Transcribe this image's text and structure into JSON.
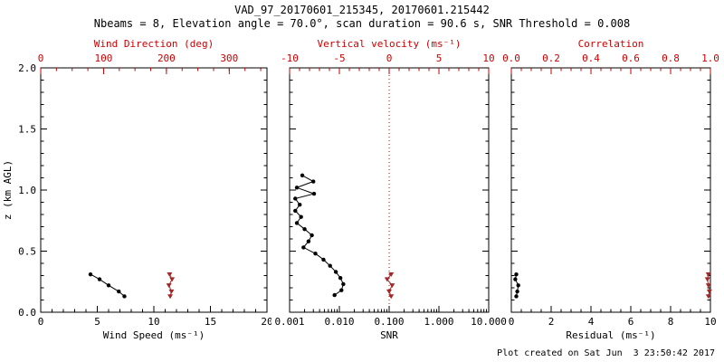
{
  "title": "VAD_97_20170601_215345, 20170601.215442",
  "subtitle": "Nbeams = 8, Elevation angle = 70.0°, scan duration = 90.6 s, SNR Threshold = 0.008",
  "footer": "Plot created on Sat Jun  3 23:50:42 2017",
  "colors": {
    "axis_black": "#000000",
    "accent_red": "#cc0000",
    "marker_red": "#a02828",
    "background": "#ffffff"
  },
  "y_axis": {
    "label": "z (km AGL)",
    "min": 0,
    "max": 2,
    "ticks": [
      0,
      0.5,
      1.0,
      1.5,
      2.0
    ],
    "tick_labels": [
      "0.0",
      "0.5",
      "1.0",
      "1.5",
      "2.0"
    ],
    "minor_step": 0.1
  },
  "chart_data": [
    {
      "type": "scatter",
      "name": "wind-panel",
      "bottom_axis": {
        "label": "Wind Speed (ms⁻¹)",
        "scale": "linear",
        "min": 0,
        "max": 20,
        "ticks": [
          0,
          5,
          10,
          15,
          20
        ],
        "tick_labels": [
          "0",
          "5",
          "10",
          "15",
          "20"
        ],
        "minor_step": 1
      },
      "top_axis": {
        "label": "Wind Direction (deg)",
        "scale": "linear",
        "min": 0,
        "max": 360,
        "ticks": [
          0,
          100,
          200,
          300
        ],
        "tick_labels": [
          "0",
          "100",
          "200",
          "300"
        ],
        "minor_step": 25
      },
      "series": [
        {
          "name": "wind-speed",
          "axis": "bottom",
          "color": "black",
          "marker": "circle",
          "points": [
            [
              4.4,
              0.31
            ],
            [
              5.2,
              0.27
            ],
            [
              6.0,
              0.22
            ],
            [
              6.9,
              0.17
            ],
            [
              7.4,
              0.13
            ]
          ]
        },
        {
          "name": "wind-direction",
          "axis": "top",
          "color": "red",
          "marker": "triangle",
          "points": [
            [
              205,
              0.31
            ],
            [
              209,
              0.27
            ],
            [
              204,
              0.22
            ],
            [
              208,
              0.17
            ],
            [
              206,
              0.13
            ]
          ]
        }
      ]
    },
    {
      "type": "scatter",
      "name": "snr-panel",
      "bottom_axis": {
        "label": "SNR",
        "scale": "log",
        "min": 0.001,
        "max": 10,
        "ticks": [
          0.001,
          0.01,
          0.1,
          1,
          10
        ],
        "tick_labels": [
          "0.001",
          "0.010",
          "0.100",
          "1.000",
          "10.000"
        ]
      },
      "top_axis": {
        "label": "Vertical velocity (ms⁻¹)",
        "scale": "linear",
        "min": -10,
        "max": 10,
        "ticks": [
          -10,
          -5,
          0,
          5,
          10
        ],
        "tick_labels": [
          "-10",
          "-5",
          "0",
          "5",
          "10"
        ],
        "minor_step": 1
      },
      "refline": {
        "axis": "top",
        "value": 0,
        "color": "red",
        "dash": "1,3"
      },
      "series": [
        {
          "name": "snr-profile",
          "axis": "bottom",
          "color": "black",
          "marker": "circle",
          "points": [
            [
              0.0018,
              1.12
            ],
            [
              0.003,
              1.07
            ],
            [
              0.0014,
              1.02
            ],
            [
              0.0031,
              0.97
            ],
            [
              0.0013,
              0.93
            ],
            [
              0.0016,
              0.88
            ],
            [
              0.0013,
              0.83
            ],
            [
              0.0017,
              0.78
            ],
            [
              0.0014,
              0.73
            ],
            [
              0.002,
              0.68
            ],
            [
              0.0028,
              0.63
            ],
            [
              0.0024,
              0.58
            ],
            [
              0.0019,
              0.53
            ],
            [
              0.0033,
              0.48
            ],
            [
              0.0048,
              0.43
            ],
            [
              0.0065,
              0.38
            ],
            [
              0.0085,
              0.33
            ],
            [
              0.0105,
              0.28
            ],
            [
              0.012,
              0.23
            ],
            [
              0.011,
              0.18
            ],
            [
              0.008,
              0.14
            ]
          ]
        },
        {
          "name": "vertical-velocity",
          "axis": "top",
          "color": "red",
          "marker": "triangle",
          "points": [
            [
              0.2,
              0.31
            ],
            [
              -0.2,
              0.27
            ],
            [
              0.3,
              0.22
            ],
            [
              0.0,
              0.17
            ],
            [
              0.2,
              0.13
            ]
          ]
        }
      ]
    },
    {
      "type": "scatter",
      "name": "residual-panel",
      "bottom_axis": {
        "label": "Residual (ms⁻¹)",
        "scale": "linear",
        "min": 0,
        "max": 10,
        "ticks": [
          0,
          2,
          4,
          6,
          8,
          10
        ],
        "tick_labels": [
          "0",
          "2",
          "4",
          "6",
          "8",
          "10"
        ],
        "minor_step": 0.5
      },
      "top_axis": {
        "label": "Correlation",
        "scale": "linear",
        "min": 0,
        "max": 1,
        "ticks": [
          0,
          0.2,
          0.4,
          0.6,
          0.8,
          1.0
        ],
        "tick_labels": [
          "0.0",
          "0.2",
          "0.4",
          "0.6",
          "0.8",
          "1.0"
        ],
        "minor_step": 0.05
      },
      "series": [
        {
          "name": "residual-profile",
          "axis": "bottom",
          "color": "black",
          "marker": "circle",
          "points": [
            [
              0.25,
              0.31
            ],
            [
              0.2,
              0.27
            ],
            [
              0.35,
              0.22
            ],
            [
              0.3,
              0.17
            ],
            [
              0.25,
              0.13
            ]
          ]
        },
        {
          "name": "correlation",
          "axis": "top",
          "color": "red",
          "marker": "triangle",
          "points": [
            [
              0.99,
              0.31
            ],
            [
              0.985,
              0.27
            ],
            [
              0.99,
              0.22
            ],
            [
              0.995,
              0.17
            ],
            [
              0.99,
              0.13
            ]
          ]
        }
      ]
    }
  ]
}
